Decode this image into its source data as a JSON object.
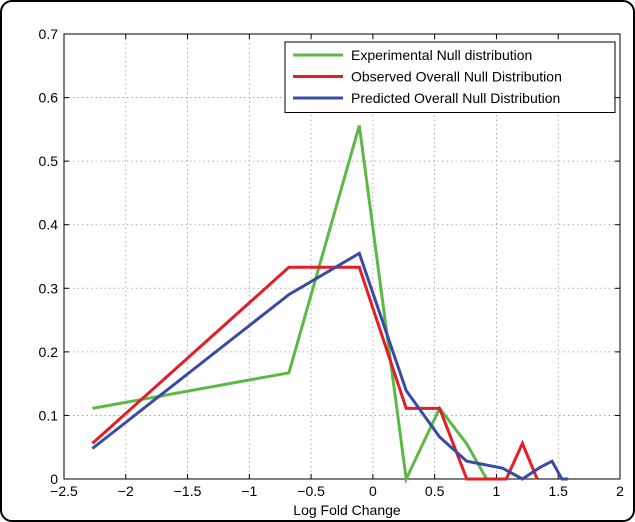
{
  "chart_data": {
    "type": "line",
    "title": "",
    "xlabel": "Log Fold Change",
    "ylabel": "",
    "xlim": [
      -2.5,
      2
    ],
    "ylim": [
      0,
      0.7
    ],
    "x_ticks": [
      "-2.5",
      "-2",
      "-1.5",
      "-1",
      "-0.5",
      "0",
      "0.5",
      "1",
      "1.5",
      "2"
    ],
    "y_ticks": [
      "0",
      "0.1",
      "0.2",
      "0.3",
      "0.4",
      "0.5",
      "0.6",
      "0.7"
    ],
    "grid": true,
    "legend_position": "top-right",
    "series": [
      {
        "name": "Experimental Null distribution",
        "color": "#5cb946",
        "x": [
          -2.27,
          -0.68,
          -0.11,
          0.27,
          0.54,
          0.76,
          0.92
        ],
        "y": [
          0.111,
          0.167,
          0.556,
          0.0,
          0.111,
          0.055,
          0.0
        ]
      },
      {
        "name": "Observed Overall Null Distribution",
        "color": "#e41e26",
        "x": [
          -2.27,
          -0.68,
          -0.11,
          0.27,
          0.54,
          0.76,
          1.08,
          1.21,
          1.33
        ],
        "y": [
          0.056,
          0.333,
          0.333,
          0.111,
          0.111,
          0.0,
          0.0,
          0.056,
          0.0
        ]
      },
      {
        "name": "Predicted Overall Null Distribution",
        "color": "#3b4ba3",
        "x": [
          -2.27,
          -0.68,
          -0.11,
          0.27,
          0.54,
          0.76,
          1.05,
          1.21,
          1.35,
          1.45,
          1.53,
          1.58
        ],
        "y": [
          0.048,
          0.29,
          0.355,
          0.139,
          0.066,
          0.028,
          0.017,
          0.0,
          0.018,
          0.028,
          0.0,
          0.0
        ]
      }
    ]
  }
}
